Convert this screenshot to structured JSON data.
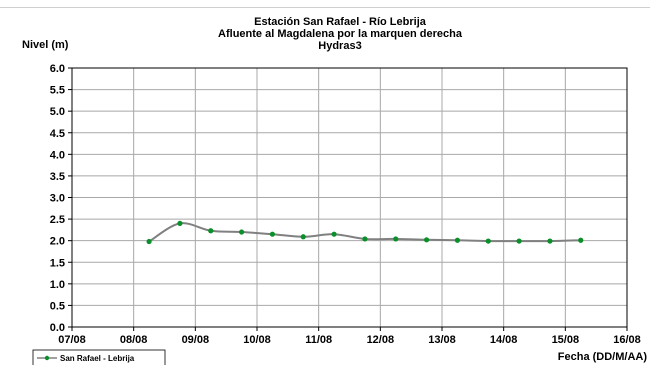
{
  "chart_data": {
    "type": "line",
    "title_lines": [
      "Estación San Rafael - Río Lebrija",
      "Afluente al Magdalena por la marquen derecha",
      "Hydras3"
    ],
    "ylabel": "Nivel (m)",
    "xlabel": "Fecha (DD/M/AA)",
    "ylim": [
      0,
      6
    ],
    "y_ticks": [
      "0.0",
      "0.5",
      "1.0",
      "1.5",
      "2.0",
      "2.5",
      "3.0",
      "3.5",
      "4.0",
      "4.5",
      "5.0",
      "5.5",
      "6.0"
    ],
    "xlim": [
      0,
      9
    ],
    "x_ticks": [
      "07/08",
      "08/08",
      "09/08",
      "10/08",
      "11/08",
      "12/08",
      "13/08",
      "14/08",
      "15/08",
      "16/08"
    ],
    "grid": true,
    "legend_position": "bottom-left",
    "series": [
      {
        "name": "San Rafael  - Lebrija",
        "color": "#808080",
        "marker_color": "#0a8f2a",
        "x": [
          1.25,
          1.75,
          2.25,
          2.75,
          3.25,
          3.75,
          4.25,
          4.75,
          5.25,
          5.75,
          6.25,
          6.75,
          7.25,
          7.75,
          8.25
        ],
        "y": [
          1.98,
          2.4,
          2.23,
          2.2,
          2.15,
          2.09,
          2.15,
          2.04,
          2.04,
          2.02,
          2.01,
          1.99,
          1.99,
          1.99,
          2.01
        ]
      }
    ]
  }
}
